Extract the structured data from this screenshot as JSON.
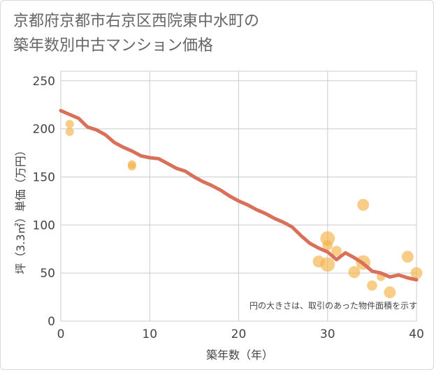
{
  "chart_data": {
    "type": "scatter",
    "title_lines": [
      "京都府京都市右京区西院東中水町の",
      "築年数別中古マンション価格"
    ],
    "xlabel": "築年数（年）",
    "ylabel": "坪（3.3㎡）単価（万円）",
    "xlim": [
      0,
      40
    ],
    "ylim": [
      0,
      260
    ],
    "x_ticks": [
      0,
      10,
      20,
      30,
      40
    ],
    "y_ticks": [
      0,
      50,
      100,
      150,
      200,
      250
    ],
    "grid": true,
    "note": "円の大きさは、取引のあった物件面積を示す",
    "colors": {
      "bubble": "#f2b248",
      "trend": "#d9705a",
      "grid": "#cccccc"
    },
    "scatter_points": [
      {
        "x": 1,
        "y": 205,
        "size": 1
      },
      {
        "x": 1,
        "y": 197,
        "size": 1
      },
      {
        "x": 8,
        "y": 163,
        "size": 1
      },
      {
        "x": 8,
        "y": 161,
        "size": 1
      },
      {
        "x": 29,
        "y": 62,
        "size": 2
      },
      {
        "x": 30,
        "y": 86,
        "size": 3
      },
      {
        "x": 30,
        "y": 79,
        "size": 1.5
      },
      {
        "x": 30,
        "y": 59,
        "size": 3
      },
      {
        "x": 31,
        "y": 73,
        "size": 1.5
      },
      {
        "x": 33,
        "y": 51,
        "size": 2
      },
      {
        "x": 34,
        "y": 121,
        "size": 2
      },
      {
        "x": 34,
        "y": 61,
        "size": 3
      },
      {
        "x": 35,
        "y": 37,
        "size": 1.5
      },
      {
        "x": 36,
        "y": 46,
        "size": 1
      },
      {
        "x": 37,
        "y": 30,
        "size": 2
      },
      {
        "x": 39,
        "y": 67,
        "size": 2
      },
      {
        "x": 40,
        "y": 50,
        "size": 2
      }
    ],
    "trend_line": {
      "x": [
        0,
        1,
        2,
        3,
        4,
        5,
        6,
        7,
        8,
        9,
        10,
        11,
        12,
        13,
        14,
        15,
        16,
        17,
        18,
        19,
        20,
        21,
        22,
        23,
        24,
        25,
        26,
        27,
        28,
        29,
        30,
        31,
        32,
        33,
        34,
        35,
        36,
        37,
        38,
        39,
        40
      ],
      "y": [
        219,
        215,
        211,
        202,
        199,
        194,
        186,
        181,
        177,
        172,
        170,
        169,
        164,
        159,
        156,
        150,
        145,
        141,
        136,
        130,
        125,
        121,
        116,
        112,
        107,
        103,
        98,
        89,
        81,
        76,
        72,
        64,
        71,
        66,
        60,
        52,
        50,
        46,
        48,
        45,
        43
      ]
    }
  }
}
